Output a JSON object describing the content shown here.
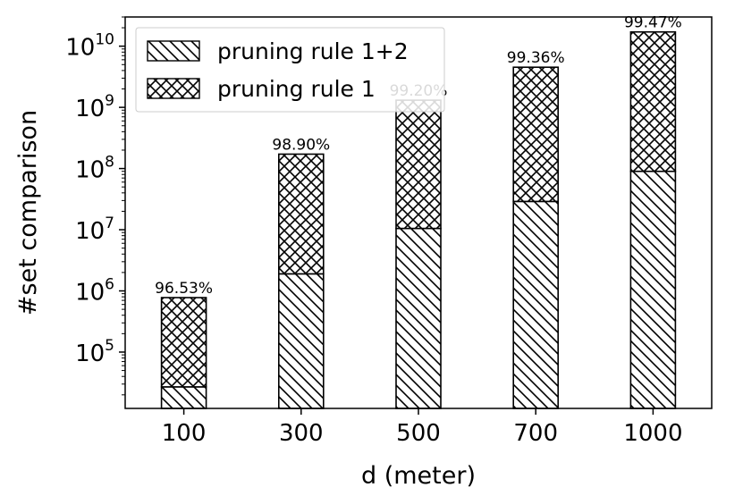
{
  "chart_data": {
    "type": "bar",
    "stacked": true,
    "xlabel": "d (meter)",
    "ylabel": "#set comparison",
    "yscale": "log",
    "ylim": [
      12000,
      30000000000
    ],
    "categories": [
      "100",
      "300",
      "500",
      "700",
      "1000"
    ],
    "series": [
      {
        "name": "pruning rule 1+2",
        "hatch": "diagonal",
        "values": [
          27000,
          1900000,
          10500000,
          29000000,
          90000000
        ]
      },
      {
        "name": "pruning rule 1",
        "hatch": "crosshatch",
        "values": [
          750000,
          170000000,
          1300000000,
          4500000000,
          17000000000
        ]
      }
    ],
    "data_labels": [
      "96.53%",
      "98.90%",
      "99.20%",
      "99.36%",
      "99.47%"
    ],
    "yticks": [
      {
        "base": "10",
        "exp": "5",
        "value": 100000
      },
      {
        "base": "10",
        "exp": "6",
        "value": 1000000
      },
      {
        "base": "10",
        "exp": "7",
        "value": 10000000
      },
      {
        "base": "10",
        "exp": "8",
        "value": 100000000
      },
      {
        "base": "10",
        "exp": "9",
        "value": 1000000000
      },
      {
        "base": "10",
        "exp": "10",
        "value": 10000000000
      }
    ],
    "legend_position": "top-left",
    "grid": false,
    "colors": {
      "bar_fill": "#ffffff",
      "edge": "#000000"
    }
  }
}
